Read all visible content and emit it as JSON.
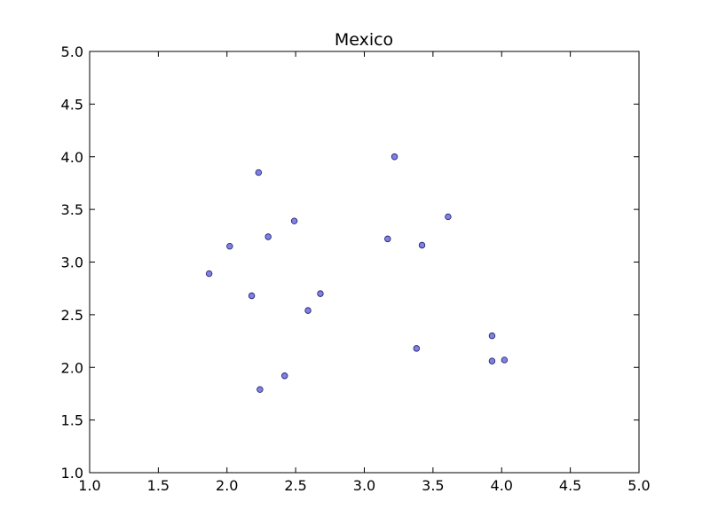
{
  "chart_data": {
    "type": "scatter",
    "title": "Mexico",
    "xlabel": "",
    "ylabel": "",
    "xlim": [
      1.0,
      5.0
    ],
    "ylim": [
      1.0,
      5.0
    ],
    "x_ticks": [
      "1.0",
      "1.5",
      "2.0",
      "2.5",
      "3.0",
      "3.5",
      "4.0",
      "4.5",
      "5.0"
    ],
    "y_ticks": [
      "1.0",
      "1.5",
      "2.0",
      "2.5",
      "3.0",
      "3.5",
      "4.0",
      "4.5",
      "5.0"
    ],
    "grid": false,
    "legend": "none",
    "point_color": "#6b6bdc",
    "point_edge_color": "#1a1a6e",
    "series": [
      {
        "points": [
          {
            "x": 1.87,
            "y": 2.89
          },
          {
            "x": 2.02,
            "y": 3.15
          },
          {
            "x": 2.18,
            "y": 2.68
          },
          {
            "x": 2.23,
            "y": 3.85
          },
          {
            "x": 2.24,
            "y": 1.79
          },
          {
            "x": 2.3,
            "y": 3.24
          },
          {
            "x": 2.42,
            "y": 1.92
          },
          {
            "x": 2.49,
            "y": 3.39
          },
          {
            "x": 2.59,
            "y": 2.54
          },
          {
            "x": 2.68,
            "y": 2.7
          },
          {
            "x": 3.17,
            "y": 3.22
          },
          {
            "x": 3.22,
            "y": 4.0
          },
          {
            "x": 3.38,
            "y": 2.18
          },
          {
            "x": 3.42,
            "y": 3.16
          },
          {
            "x": 3.61,
            "y": 3.43
          },
          {
            "x": 3.93,
            "y": 2.3
          },
          {
            "x": 3.93,
            "y": 2.06
          },
          {
            "x": 4.02,
            "y": 2.07
          }
        ]
      }
    ]
  }
}
